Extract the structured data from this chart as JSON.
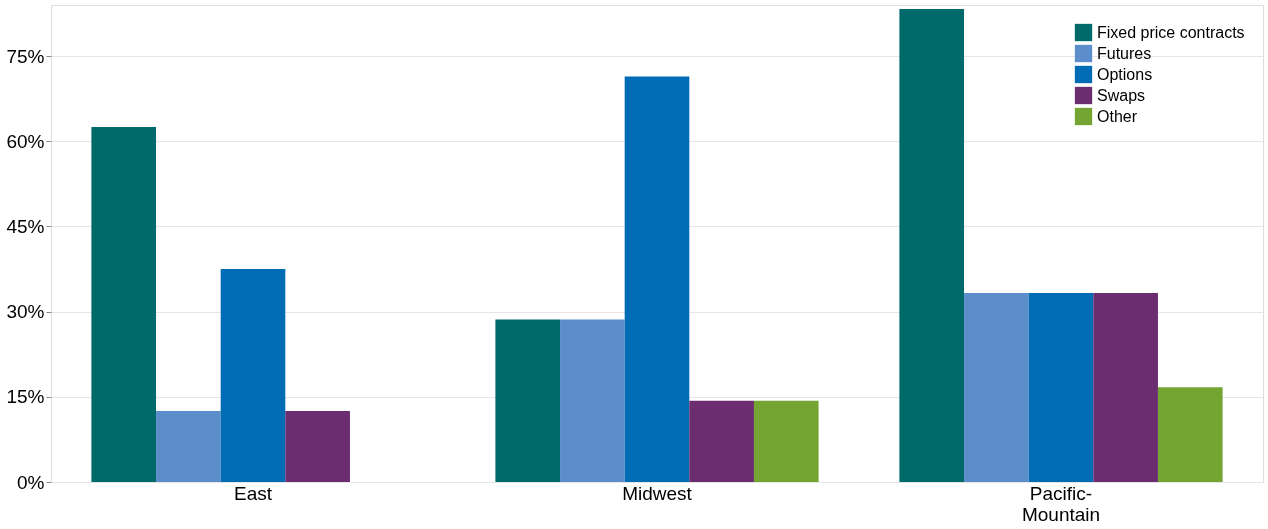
{
  "chart_data": {
    "type": "bar",
    "categories": [
      "East",
      "Midwest",
      "Pacific-\nMountain"
    ],
    "series": [
      {
        "name": "Fixed price contracts",
        "color": "#006a6a",
        "values": [
          62.5,
          28.6,
          83.3
        ]
      },
      {
        "name": "Futures",
        "color": "#5b8ecb",
        "values": [
          12.5,
          28.6,
          33.3
        ]
      },
      {
        "name": "Options",
        "color": "#006cb5",
        "values": [
          37.5,
          71.4,
          33.3
        ]
      },
      {
        "name": "Swaps",
        "color": "#6b2d6f",
        "values": [
          12.5,
          14.3,
          33.3
        ]
      },
      {
        "name": "Other",
        "color": "#74a533",
        "values": [
          null,
          14.3,
          16.7
        ]
      }
    ],
    "ylim": [
      0,
      84
    ],
    "yticks": [
      {
        "value": 0,
        "label": "0%"
      },
      {
        "value": 15,
        "label": "15%"
      },
      {
        "value": 30,
        "label": "30%"
      },
      {
        "value": 45,
        "label": "45%"
      },
      {
        "value": 60,
        "label": "60%"
      },
      {
        "value": 75,
        "label": "75%"
      }
    ],
    "grid": "y",
    "legend": "top right"
  }
}
